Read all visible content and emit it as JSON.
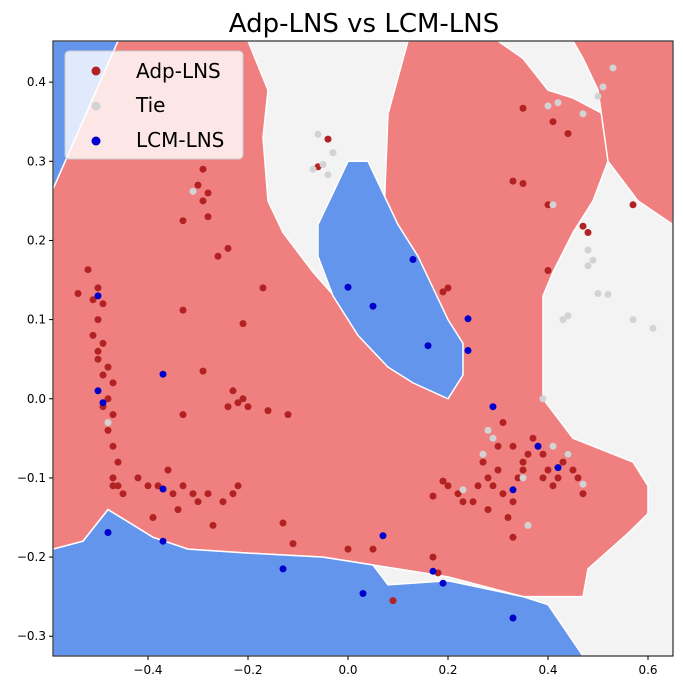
{
  "chart_data": {
    "type": "scatter",
    "title": "Adp-LNS vs LCM-LNS",
    "xlabel": "",
    "ylabel": "",
    "xlim": [
      -0.59,
      0.65
    ],
    "ylim": [
      -0.325,
      0.452
    ],
    "x_ticks": [
      -0.4,
      -0.2,
      0.0,
      0.2,
      0.4,
      0.6
    ],
    "x_tick_labels": [
      "−0.4",
      "−0.2",
      "0.0",
      "0.2",
      "0.4",
      "0.6"
    ],
    "y_ticks": [
      -0.3,
      -0.2,
      -0.1,
      0.0,
      0.1,
      0.2,
      0.3,
      0.4
    ],
    "y_tick_labels": [
      "−0.3",
      "−0.2",
      "−0.1",
      "0.0",
      "0.1",
      "0.2",
      "0.3",
      "0.4"
    ],
    "grid": false,
    "legend_position": "top-left",
    "background": "#f3f3f3",
    "regions": [
      {
        "class": "Adp-LNS",
        "color": "#f08080",
        "polygon": [
          [
            -0.59,
            0.265
          ],
          [
            -0.46,
            0.452
          ],
          [
            -0.2,
            0.452
          ],
          [
            -0.16,
            0.39
          ],
          [
            -0.17,
            0.33
          ],
          [
            -0.16,
            0.25
          ],
          [
            -0.13,
            0.21
          ],
          [
            -0.07,
            0.16
          ],
          [
            0.0,
            0.11
          ],
          [
            0.07,
            0.2
          ],
          [
            0.08,
            0.36
          ],
          [
            0.12,
            0.452
          ],
          [
            0.3,
            0.452
          ],
          [
            0.35,
            0.43
          ],
          [
            0.4,
            0.39
          ],
          [
            0.45,
            0.38
          ],
          [
            0.51,
            0.36
          ],
          [
            0.52,
            0.3
          ],
          [
            0.49,
            0.25
          ],
          [
            0.45,
            0.21
          ],
          [
            0.41,
            0.16
          ],
          [
            0.39,
            0.13
          ],
          [
            0.39,
            0.0
          ],
          [
            0.45,
            -0.05
          ],
          [
            0.57,
            -0.08
          ],
          [
            0.6,
            -0.11
          ],
          [
            0.6,
            -0.145
          ],
          [
            0.56,
            -0.17
          ],
          [
            0.48,
            -0.215
          ],
          [
            0.47,
            -0.25
          ],
          [
            0.35,
            -0.25
          ],
          [
            0.2,
            -0.225
          ],
          [
            0.1,
            -0.215
          ],
          [
            -0.05,
            -0.2
          ],
          [
            -0.2,
            -0.195
          ],
          [
            -0.32,
            -0.19
          ],
          [
            -0.39,
            -0.175
          ],
          [
            -0.48,
            -0.14
          ],
          [
            -0.53,
            -0.18
          ],
          [
            -0.59,
            -0.19
          ]
        ]
      },
      {
        "class": "Adp-LNS",
        "color": "#f08080",
        "polygon": [
          [
            0.3,
            0.452
          ],
          [
            0.45,
            0.452
          ],
          [
            0.47,
            0.43
          ],
          [
            0.5,
            0.39
          ],
          [
            0.52,
            0.3
          ],
          [
            0.58,
            0.25
          ],
          [
            0.65,
            0.22
          ],
          [
            0.65,
            0.452
          ]
        ]
      },
      {
        "class": "LCM-LNS",
        "color": "#6495ed",
        "polygon": [
          [
            -0.59,
            0.265
          ],
          [
            -0.59,
            0.452
          ],
          [
            -0.46,
            0.452
          ]
        ]
      },
      {
        "class": "LCM-LNS",
        "color": "#6495ed",
        "polygon": [
          [
            0.0,
            0.3
          ],
          [
            0.04,
            0.3
          ],
          [
            0.07,
            0.26
          ],
          [
            0.1,
            0.22
          ],
          [
            0.14,
            0.18
          ],
          [
            0.17,
            0.14
          ],
          [
            0.2,
            0.1
          ],
          [
            0.23,
            0.07
          ],
          [
            0.23,
            0.03
          ],
          [
            0.2,
            0.0
          ],
          [
            0.13,
            0.02
          ],
          [
            0.08,
            0.04
          ],
          [
            0.02,
            0.08
          ],
          [
            -0.03,
            0.13
          ],
          [
            -0.06,
            0.18
          ],
          [
            -0.06,
            0.22
          ],
          [
            -0.03,
            0.26
          ]
        ]
      },
      {
        "class": "LCM-LNS",
        "color": "#6495ed",
        "polygon": [
          [
            -0.59,
            -0.325
          ],
          [
            -0.59,
            -0.19
          ],
          [
            -0.53,
            -0.18
          ],
          [
            -0.48,
            -0.14
          ],
          [
            -0.39,
            -0.175
          ],
          [
            -0.32,
            -0.19
          ],
          [
            -0.2,
            -0.195
          ],
          [
            -0.05,
            -0.2
          ],
          [
            0.05,
            -0.21
          ],
          [
            0.08,
            -0.235
          ],
          [
            0.2,
            -0.23
          ],
          [
            0.35,
            -0.25
          ],
          [
            0.4,
            -0.26
          ],
          [
            0.47,
            -0.325
          ]
        ]
      }
    ],
    "series": [
      {
        "name": "Adp-LNS",
        "color": "#b22222",
        "points": [
          [
            -0.54,
            0.133
          ],
          [
            -0.52,
            0.163
          ],
          [
            -0.51,
            0.125
          ],
          [
            -0.5,
            0.14
          ],
          [
            -0.49,
            0.12
          ],
          [
            -0.5,
            0.1
          ],
          [
            -0.51,
            0.08
          ],
          [
            -0.5,
            0.06
          ],
          [
            -0.49,
            0.07
          ],
          [
            -0.5,
            0.05
          ],
          [
            -0.49,
            0.03
          ],
          [
            -0.48,
            0.04
          ],
          [
            -0.47,
            0.02
          ],
          [
            -0.48,
            0.0
          ],
          [
            -0.49,
            -0.01
          ],
          [
            -0.47,
            -0.02
          ],
          [
            -0.48,
            -0.04
          ],
          [
            -0.47,
            -0.06
          ],
          [
            -0.46,
            -0.08
          ],
          [
            -0.47,
            -0.1
          ],
          [
            -0.46,
            -0.11
          ],
          [
            -0.45,
            -0.12
          ],
          [
            -0.42,
            -0.1
          ],
          [
            -0.4,
            -0.11
          ],
          [
            -0.38,
            -0.11
          ],
          [
            -0.36,
            -0.09
          ],
          [
            -0.35,
            -0.12
          ],
          [
            -0.33,
            -0.11
          ],
          [
            -0.34,
            -0.14
          ],
          [
            -0.31,
            -0.12
          ],
          [
            -0.3,
            -0.13
          ],
          [
            -0.28,
            -0.12
          ],
          [
            -0.27,
            -0.16
          ],
          [
            -0.25,
            -0.13
          ],
          [
            -0.23,
            -0.12
          ],
          [
            -0.22,
            -0.11
          ],
          [
            -0.39,
            -0.15
          ],
          [
            -0.33,
            -0.02
          ],
          [
            -0.29,
            0.035
          ],
          [
            -0.24,
            -0.01
          ],
          [
            -0.22,
            -0.005
          ],
          [
            -0.21,
            0.0
          ],
          [
            -0.2,
            -0.01
          ],
          [
            -0.23,
            0.01
          ],
          [
            -0.16,
            -0.015
          ],
          [
            -0.12,
            -0.02
          ],
          [
            -0.17,
            0.14
          ],
          [
            -0.21,
            0.095
          ],
          [
            -0.26,
            0.18
          ],
          [
            -0.24,
            0.19
          ],
          [
            -0.28,
            0.23
          ],
          [
            -0.29,
            0.29
          ],
          [
            -0.3,
            0.27
          ],
          [
            -0.29,
            0.25
          ],
          [
            -0.28,
            0.26
          ],
          [
            -0.33,
            0.225
          ],
          [
            -0.33,
            0.112
          ],
          [
            -0.06,
            0.293
          ],
          [
            -0.04,
            0.328
          ],
          [
            0.19,
            0.135
          ],
          [
            0.2,
            0.14
          ],
          [
            0.35,
            0.367
          ],
          [
            0.41,
            0.35
          ],
          [
            0.44,
            0.335
          ],
          [
            0.4,
            0.245
          ],
          [
            0.47,
            0.218
          ],
          [
            0.48,
            0.21
          ],
          [
            0.57,
            0.245
          ],
          [
            0.4,
            0.162
          ],
          [
            0.33,
            0.275
          ],
          [
            0.35,
            0.272
          ],
          [
            0.0,
            -0.19
          ],
          [
            0.05,
            -0.19
          ],
          [
            0.09,
            -0.255
          ],
          [
            0.17,
            -0.2
          ],
          [
            0.18,
            -0.22
          ],
          [
            0.19,
            -0.104
          ],
          [
            0.2,
            -0.11
          ],
          [
            0.22,
            -0.12
          ],
          [
            0.17,
            -0.123
          ],
          [
            0.23,
            -0.13
          ],
          [
            0.25,
            -0.13
          ],
          [
            0.27,
            -0.08
          ],
          [
            0.28,
            -0.1
          ],
          [
            0.29,
            -0.11
          ],
          [
            0.3,
            -0.09
          ],
          [
            0.31,
            -0.12
          ],
          [
            0.32,
            -0.15
          ],
          [
            0.33,
            -0.13
          ],
          [
            0.34,
            -0.1
          ],
          [
            0.35,
            -0.08
          ],
          [
            0.36,
            -0.07
          ],
          [
            0.37,
            -0.05
          ],
          [
            0.38,
            -0.06
          ],
          [
            0.39,
            -0.07
          ],
          [
            0.4,
            -0.09
          ],
          [
            0.41,
            -0.11
          ],
          [
            0.42,
            -0.1
          ],
          [
            0.43,
            -0.08
          ],
          [
            0.44,
            -0.07
          ],
          [
            0.45,
            -0.09
          ],
          [
            0.46,
            -0.1
          ],
          [
            0.47,
            -0.12
          ],
          [
            0.35,
            -0.09
          ],
          [
            0.33,
            -0.175
          ],
          [
            0.3,
            -0.06
          ],
          [
            0.31,
            -0.03
          ],
          [
            0.33,
            -0.06
          ],
          [
            0.28,
            -0.14
          ],
          [
            -0.47,
            -0.11
          ],
          [
            -0.11,
            -0.183
          ],
          [
            -0.13,
            -0.157
          ],
          [
            0.26,
            -0.11
          ],
          [
            0.39,
            -0.1
          ]
        ]
      },
      {
        "name": "Tie",
        "color": "#d3d3d3",
        "points": [
          [
            -0.31,
            0.262
          ],
          [
            -0.07,
            0.29
          ],
          [
            -0.06,
            0.334
          ],
          [
            -0.05,
            0.296
          ],
          [
            -0.04,
            0.283
          ],
          [
            -0.03,
            0.311
          ],
          [
            0.4,
            0.37
          ],
          [
            0.42,
            0.374
          ],
          [
            0.47,
            0.36
          ],
          [
            0.5,
            0.382
          ],
          [
            0.51,
            0.394
          ],
          [
            0.53,
            0.418
          ],
          [
            0.41,
            0.245
          ],
          [
            0.48,
            0.188
          ],
          [
            0.49,
            0.175
          ],
          [
            0.48,
            0.168
          ],
          [
            0.5,
            0.133
          ],
          [
            0.52,
            0.132
          ],
          [
            0.43,
            0.1
          ],
          [
            0.44,
            0.105
          ],
          [
            0.57,
            0.1
          ],
          [
            0.61,
            0.089
          ],
          [
            0.39,
            0.0
          ],
          [
            0.41,
            -0.06
          ],
          [
            0.44,
            -0.07
          ],
          [
            0.35,
            -0.1
          ],
          [
            0.28,
            -0.04
          ],
          [
            0.29,
            -0.05
          ],
          [
            0.27,
            -0.07
          ],
          [
            0.23,
            -0.115
          ],
          [
            0.36,
            -0.16
          ],
          [
            0.47,
            -0.108
          ],
          [
            -0.48,
            -0.03
          ]
        ]
      },
      {
        "name": "LCM-LNS",
        "color": "#0000cd",
        "points": [
          [
            -0.5,
            0.13
          ],
          [
            -0.5,
            0.01
          ],
          [
            -0.49,
            -0.005
          ],
          [
            -0.48,
            -0.169
          ],
          [
            -0.37,
            0.031
          ],
          [
            -0.37,
            -0.114
          ],
          [
            -0.37,
            -0.18
          ],
          [
            -0.13,
            -0.215
          ],
          [
            0.0,
            0.141
          ],
          [
            0.05,
            0.117
          ],
          [
            0.13,
            0.176
          ],
          [
            0.16,
            0.067
          ],
          [
            0.24,
            0.101
          ],
          [
            0.24,
            0.061
          ],
          [
            0.29,
            -0.01
          ],
          [
            0.07,
            -0.173
          ],
          [
            0.03,
            -0.246
          ],
          [
            0.17,
            -0.218
          ],
          [
            0.19,
            -0.233
          ],
          [
            0.33,
            -0.115
          ],
          [
            0.33,
            -0.277
          ],
          [
            0.38,
            -0.06
          ],
          [
            0.42,
            -0.087
          ]
        ]
      }
    ]
  }
}
